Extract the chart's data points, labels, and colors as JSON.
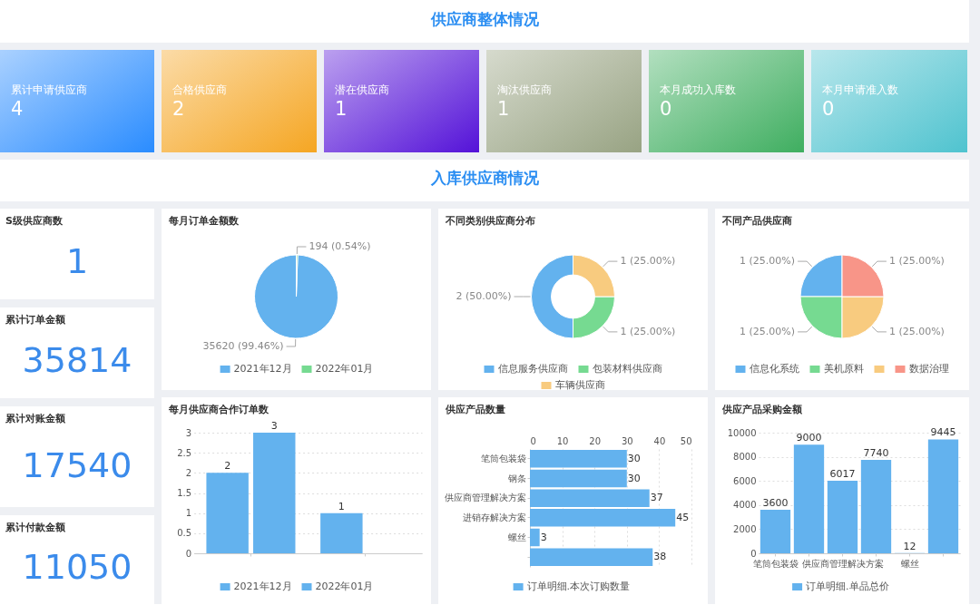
{
  "chart_data": [
    {
      "type": "other",
      "title": "供应商整体情况",
      "categories": [
        "累计申请供应商",
        "合格供应商",
        "潜在供应商",
        "淘汰供应商",
        "本月成功入库数",
        "本月申请准入数"
      ],
      "values": [
        4,
        2,
        1,
        1,
        0,
        0
      ],
      "colors": [
        "#2a8cff",
        "#f5a623",
        "#5412d8",
        "#98a383",
        "#3fae60",
        "#4fc3cf"
      ],
      "data_labels": true
    },
    {
      "type": "other",
      "title": "入库供应商情况"
    },
    {
      "type": "other",
      "categories": [
        "S级供应商数",
        "累计订单金额",
        "累计对账金额",
        "累计付款金额"
      ],
      "values": [
        1,
        35814,
        17540,
        11050
      ],
      "data_labels": true
    },
    {
      "type": "pie",
      "title": "每月订单金额数",
      "categories": [
        "2021年12月",
        "2022年01月"
      ],
      "values": [
        35620,
        194
      ],
      "colors": [
        "#63b2ee",
        "#76da91"
      ],
      "value_labels": [
        "35620 (99.46%)",
        "194 (0.54%)"
      ],
      "legend": "bottom"
    },
    {
      "type": "donut",
      "title": "不同类别供应商分布",
      "categories": [
        "信息服务供应商",
        "包装材料供应商",
        "车辆供应商"
      ],
      "values": [
        2,
        1,
        1
      ],
      "colors": [
        "#63b2ee",
        "#76da91",
        "#f8cb7f"
      ],
      "value_labels": [
        "2 (50.00%)",
        "1 (25.00%)",
        "1 (25.00%)"
      ],
      "legend": "bottom"
    },
    {
      "type": "pie",
      "title": "不同产品供应商",
      "categories": [
        "信息化系统",
        "美机原料",
        null,
        "数据治理"
      ],
      "values": [
        1,
        1,
        1,
        1
      ],
      "colors": [
        "#63b2ee",
        "#76da91",
        "#f8cb7f",
        "#f89588"
      ],
      "value_labels": [
        "1 (25.00%)",
        "1 (25.00%)",
        "1 (25.00%)",
        "1 (25.00%)"
      ],
      "legend": "bottom"
    },
    {
      "type": "bar",
      "title": "每月供应商合作订单数",
      "categories": [
        null,
        null
      ],
      "series": [
        {
          "name": "2021年12月",
          "color": "#63b2ee",
          "values": [
            2,
            1
          ]
        },
        {
          "name": "2022年01月",
          "color": "#63b2ee",
          "values": [
            3,
            null
          ]
        }
      ],
      "ylim": [
        0,
        3
      ],
      "yticks": [
        0,
        0.5,
        1,
        1.5,
        2,
        2.5,
        3
      ],
      "grid": "y",
      "data_labels": true,
      "legend": "bottom"
    },
    {
      "type": "bar",
      "title": "供应产品数量",
      "orientation": "horizontal",
      "categories": [
        "笔筒包装袋",
        "钢条",
        "供应商管理解决方案",
        "进销存解决方案",
        "螺丝",
        null
      ],
      "series": [
        {
          "name": "订单明细.本次订购数量",
          "color": "#63b2ee",
          "values": [
            30,
            30,
            37,
            45,
            3,
            38
          ]
        }
      ],
      "xlim": [
        0,
        50
      ],
      "xticks": [
        0,
        10,
        20,
        30,
        40,
        50
      ],
      "grid": "x",
      "data_labels": true,
      "legend": "bottom"
    },
    {
      "type": "bar",
      "title": "供应产品采购金额",
      "categories": [
        "笔筒包装袋",
        null,
        "供应商管理解决方案",
        null,
        "螺丝",
        null
      ],
      "series": [
        {
          "name": "订单明细.单品总价",
          "color": "#63b2ee",
          "values": [
            3600,
            9000,
            6017,
            7740,
            12,
            9445
          ]
        }
      ],
      "ylim": [
        0,
        10000
      ],
      "yticks": [
        0,
        2000,
        4000,
        6000,
        8000,
        10000
      ],
      "grid": "y",
      "data_labels": true,
      "legend": "bottom"
    }
  ]
}
